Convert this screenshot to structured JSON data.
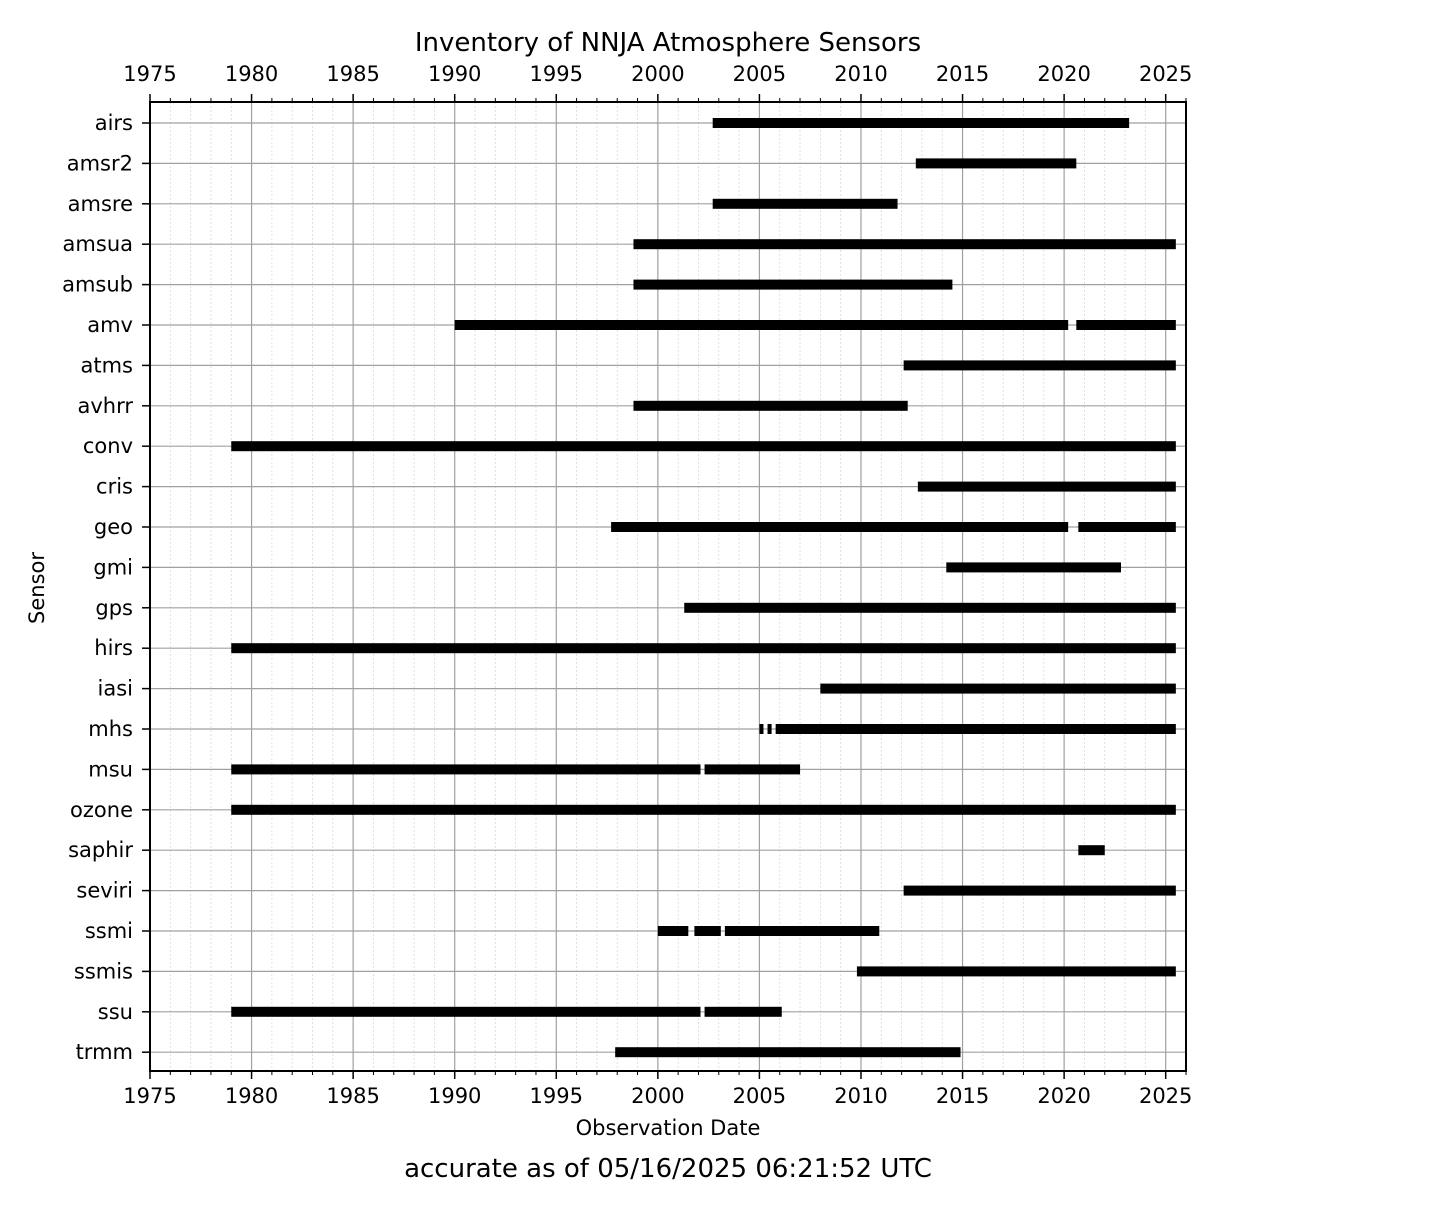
{
  "chart_data": {
    "type": "bar",
    "orientation": "horizontal-timeline",
    "title": "Inventory of NNJA Atmosphere Sensors",
    "xlabel": "Observation Date",
    "ylabel": "Sensor",
    "footnote": "accurate as of 05/16/2025 06:21:52 UTC",
    "xlim": [
      1975,
      2026
    ],
    "x_ticks": [
      "1975",
      "1980",
      "1985",
      "1990",
      "1995",
      "2000",
      "2005",
      "2010",
      "2015",
      "2020",
      "2025"
    ],
    "x_tick_values": [
      1975,
      1980,
      1985,
      1990,
      1995,
      2000,
      2005,
      2010,
      2015,
      2020,
      2025
    ],
    "grid": true,
    "bar_color": "#000000",
    "sensors": [
      {
        "name": "airs",
        "spans": [
          [
            2002.7,
            2023.2
          ]
        ]
      },
      {
        "name": "amsr2",
        "spans": [
          [
            2012.7,
            2020.6
          ]
        ]
      },
      {
        "name": "amsre",
        "spans": [
          [
            2002.7,
            2011.8
          ]
        ]
      },
      {
        "name": "amsua",
        "spans": [
          [
            1998.8,
            2025.5
          ]
        ]
      },
      {
        "name": "amsub",
        "spans": [
          [
            1998.8,
            2014.5
          ]
        ]
      },
      {
        "name": "amv",
        "spans": [
          [
            1990.0,
            2020.2
          ],
          [
            2020.6,
            2025.5
          ]
        ]
      },
      {
        "name": "atms",
        "spans": [
          [
            2012.1,
            2025.5
          ]
        ]
      },
      {
        "name": "avhrr",
        "spans": [
          [
            1998.8,
            2012.3
          ]
        ]
      },
      {
        "name": "conv",
        "spans": [
          [
            1979.0,
            2025.5
          ]
        ]
      },
      {
        "name": "cris",
        "spans": [
          [
            2012.8,
            2025.5
          ]
        ]
      },
      {
        "name": "geo",
        "spans": [
          [
            1997.7,
            2020.2
          ],
          [
            2020.7,
            2025.5
          ]
        ]
      },
      {
        "name": "gmi",
        "spans": [
          [
            2014.2,
            2022.8
          ]
        ]
      },
      {
        "name": "gps",
        "spans": [
          [
            2001.3,
            2025.5
          ]
        ]
      },
      {
        "name": "hirs",
        "spans": [
          [
            1979.0,
            2025.5
          ]
        ]
      },
      {
        "name": "iasi",
        "spans": [
          [
            2008.0,
            2025.5
          ]
        ]
      },
      {
        "name": "mhs",
        "spans": [
          [
            2005.0,
            2005.2
          ],
          [
            2005.4,
            2005.6
          ],
          [
            2005.8,
            2025.5
          ]
        ]
      },
      {
        "name": "msu",
        "spans": [
          [
            1979.0,
            2002.1
          ],
          [
            2002.3,
            2007.0
          ]
        ]
      },
      {
        "name": "ozone",
        "spans": [
          [
            1979.0,
            2025.5
          ]
        ]
      },
      {
        "name": "saphir",
        "spans": [
          [
            2020.7,
            2022.0
          ]
        ]
      },
      {
        "name": "seviri",
        "spans": [
          [
            2012.1,
            2025.5
          ]
        ]
      },
      {
        "name": "ssmi",
        "spans": [
          [
            2000.0,
            2001.5
          ],
          [
            2001.8,
            2003.1
          ],
          [
            2003.3,
            2010.9
          ]
        ]
      },
      {
        "name": "ssmis",
        "spans": [
          [
            2009.8,
            2025.5
          ]
        ]
      },
      {
        "name": "ssu",
        "spans": [
          [
            1979.0,
            2002.1
          ],
          [
            2002.3,
            2006.1
          ]
        ]
      },
      {
        "name": "trmm",
        "spans": [
          [
            1997.9,
            2014.9
          ]
        ]
      }
    ]
  }
}
